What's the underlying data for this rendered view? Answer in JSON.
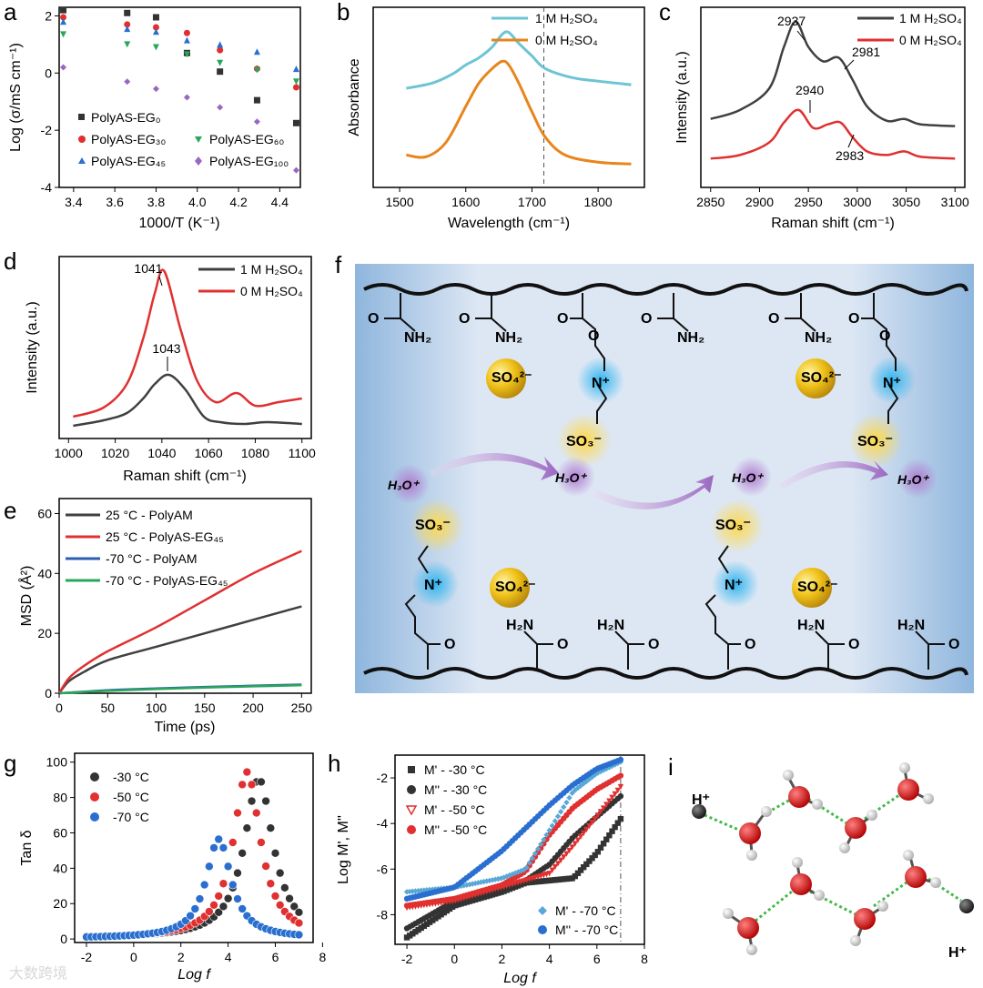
{
  "panels": {
    "a": {
      "label": "a",
      "xlabel": "1000/T (K⁻¹)",
      "ylabel": "Log (σ/mS cm⁻¹)",
      "xticks": [
        "3.4",
        "3.6",
        "3.8",
        "4.0",
        "4.2",
        "4.4"
      ],
      "yticks": [
        "2",
        "0",
        "-2",
        "-4"
      ],
      "legend": [
        "PolyAS-EG₀",
        "PolyAS-EG₃₀",
        "PolyAS-EG₆₀",
        "PolyAS-EG₄₅",
        "PolyAS-EG₁₀₀"
      ]
    },
    "b": {
      "label": "b",
      "xlabel": "Wavelength (cm⁻¹)",
      "ylabel": "Absorbance",
      "xticks": [
        "1500",
        "1600",
        "1700",
        "1800"
      ],
      "legend": [
        "1 M H₂SO₄",
        "0 M H₂SO₄"
      ]
    },
    "c": {
      "label": "c",
      "xlabel": "Raman shift (cm⁻¹)",
      "ylabel": "Intensity (a.u.)",
      "xticks": [
        "2850",
        "2900",
        "2950",
        "3000",
        "3050",
        "3100"
      ],
      "legend": [
        "1 M H₂SO₄",
        "0 M H₂SO₄"
      ],
      "annotations": [
        "2937",
        "2981",
        "2940",
        "2983"
      ]
    },
    "d": {
      "label": "d",
      "xlabel": "Raman shift (cm⁻¹)",
      "ylabel": "Intensity (a.u.)",
      "xticks": [
        "1000",
        "1020",
        "1040",
        "1060",
        "1080",
        "1100"
      ],
      "legend": [
        "1 M H₂SO₄",
        "0 M H₂SO₄"
      ],
      "annotations": [
        "1041",
        "1043"
      ]
    },
    "e": {
      "label": "e",
      "xlabel": "Time (ps)",
      "ylabel": "MSD (Å²)",
      "xticks": [
        "0",
        "50",
        "100",
        "150",
        "200",
        "250"
      ],
      "yticks": [
        "0",
        "20",
        "40",
        "60"
      ],
      "legend": [
        "25 °C - PolyAM",
        "25 °C - PolyAS-EG₄₅",
        "-70 °C - PolyAM",
        "-70 °C - PolyAS-EG₄₅"
      ]
    },
    "f": {
      "label": "f",
      "groups": {
        "amide_top": "NH₂",
        "amide_bottom": "H₂N",
        "sulfate": "SO₄²⁻",
        "hydronium": "H₃O⁺",
        "ammonium": "N⁺",
        "sulfonate": "SO₃⁻"
      }
    },
    "g": {
      "label": "g",
      "xlabel": "Log f",
      "ylabel": "Tan δ",
      "xticks": [
        "-2",
        "0",
        "2",
        "4",
        "6",
        "8"
      ],
      "yticks": [
        "0",
        "20",
        "40",
        "60",
        "80",
        "100"
      ],
      "legend": [
        "-30 °C",
        "-50 °C",
        "-70 °C"
      ]
    },
    "h": {
      "label": "h",
      "xlabel": "Log f",
      "ylabel": "Log M', M''",
      "xticks": [
        "-2",
        "0",
        "2",
        "4",
        "6",
        "8"
      ],
      "yticks": [
        "-2",
        "-4",
        "-6",
        "-8"
      ],
      "legend": [
        "M' - -30 °C",
        "M'' - -30 °C",
        "M' - -50 °C",
        "M'' - -50 °C",
        "M' - -70 °C",
        "M'' - -70 °C"
      ]
    },
    "i": {
      "label": "i",
      "ion_left": "H⁺",
      "ion_right": "H⁺"
    }
  },
  "watermark": "大数跨境",
  "chart_data": [
    {
      "panel": "a",
      "type": "scatter",
      "xlim": [
        3.33,
        4.5
      ],
      "ylim": [
        -4,
        2.3
      ],
      "x": [
        3.35,
        3.66,
        3.8,
        3.95,
        4.11,
        4.29,
        4.48
      ],
      "series": [
        {
          "name": "PolyAS-EG0",
          "color": "#333333",
          "marker": "square",
          "values": [
            2.2,
            2.1,
            1.95,
            0.7,
            0.05,
            -0.95,
            -1.75
          ]
        },
        {
          "name": "PolyAS-EG30",
          "color": "#e03030",
          "marker": "circle",
          "values": [
            1.95,
            1.7,
            1.6,
            1.4,
            0.8,
            0.15,
            -0.5
          ]
        },
        {
          "name": "PolyAS-EG60",
          "color": "#2aa65a",
          "marker": "triangle-down",
          "values": [
            1.35,
            1.0,
            0.9,
            0.65,
            0.35,
            0.1,
            -0.3
          ]
        },
        {
          "name": "PolyAS-EG45",
          "color": "#2a6fd0",
          "marker": "triangle",
          "values": [
            1.8,
            1.55,
            1.45,
            1.15,
            1.0,
            0.75,
            0.15
          ]
        },
        {
          "name": "PolyAS-EG100",
          "color": "#9a66c0",
          "marker": "diamond",
          "values": [
            0.2,
            -0.3,
            -0.55,
            -0.85,
            -1.2,
            -1.7,
            -3.4
          ]
        }
      ]
    },
    {
      "panel": "b",
      "type": "line",
      "xlim": [
        1460,
        1870
      ],
      "ylim": [
        0,
        1
      ],
      "dashed_x": 1718,
      "series": [
        {
          "name": "1 M H2SO4",
          "color": "#6cc4d4",
          "x": [
            1510,
            1550,
            1580,
            1600,
            1620,
            1640,
            1655,
            1665,
            1680,
            1700,
            1720,
            1760,
            1800,
            1850
          ],
          "values": [
            0.55,
            0.58,
            0.63,
            0.68,
            0.72,
            0.78,
            0.85,
            0.86,
            0.8,
            0.73,
            0.66,
            0.61,
            0.59,
            0.57
          ]
        },
        {
          "name": "0 M H2SO4",
          "color": "#e8851c",
          "x": [
            1510,
            1540,
            1570,
            1600,
            1620,
            1640,
            1655,
            1665,
            1680,
            1700,
            1720,
            1750,
            1800,
            1850
          ],
          "values": [
            0.18,
            0.17,
            0.25,
            0.45,
            0.58,
            0.66,
            0.7,
            0.68,
            0.58,
            0.42,
            0.28,
            0.18,
            0.14,
            0.13
          ]
        }
      ]
    },
    {
      "panel": "c",
      "type": "line",
      "xlim": [
        2840,
        3110
      ],
      "ylim": [
        0,
        1
      ],
      "series": [
        {
          "name": "1 M H2SO4",
          "color": "#404040",
          "x": [
            2850,
            2880,
            2910,
            2925,
            2937,
            2950,
            2965,
            2981,
            2995,
            3010,
            3030,
            3048,
            3065,
            3100
          ],
          "values": [
            0.38,
            0.43,
            0.55,
            0.78,
            0.92,
            0.78,
            0.7,
            0.72,
            0.6,
            0.45,
            0.37,
            0.38,
            0.35,
            0.34
          ]
        },
        {
          "name": "0 M H2SO4",
          "color": "#e03030",
          "x": [
            2850,
            2880,
            2910,
            2925,
            2940,
            2955,
            2970,
            2983,
            2995,
            3010,
            3030,
            3048,
            3065,
            3100
          ],
          "values": [
            0.16,
            0.18,
            0.25,
            0.36,
            0.43,
            0.33,
            0.35,
            0.36,
            0.28,
            0.2,
            0.18,
            0.2,
            0.17,
            0.16
          ]
        }
      ]
    },
    {
      "panel": "d",
      "type": "line",
      "xlim": [
        996,
        1104
      ],
      "ylim": [
        0,
        1
      ],
      "series": [
        {
          "name": "1 M H2SO4",
          "color": "#404040",
          "x": [
            1002,
            1015,
            1025,
            1032,
            1037,
            1043,
            1050,
            1058,
            1065,
            1075,
            1085,
            1100
          ],
          "values": [
            0.07,
            0.1,
            0.14,
            0.22,
            0.3,
            0.35,
            0.27,
            0.12,
            0.09,
            0.08,
            0.09,
            0.08
          ]
        },
        {
          "name": "0 M H2SO4",
          "color": "#e03030",
          "x": [
            1002,
            1015,
            1025,
            1032,
            1037,
            1041,
            1048,
            1055,
            1063,
            1072,
            1080,
            1090,
            1100
          ],
          "values": [
            0.12,
            0.17,
            0.3,
            0.55,
            0.8,
            0.92,
            0.6,
            0.32,
            0.2,
            0.25,
            0.18,
            0.2,
            0.22
          ]
        }
      ]
    },
    {
      "panel": "e",
      "type": "line",
      "xlim": [
        0,
        260
      ],
      "ylim": [
        0,
        65
      ],
      "series": [
        {
          "name": "25 °C - PolyAM",
          "color": "#404040",
          "x": [
            0,
            10,
            25,
            50,
            100,
            150,
            200,
            250
          ],
          "values": [
            0,
            4,
            7,
            11,
            15.5,
            20,
            24.5,
            29
          ]
        },
        {
          "name": "25 °C - PolyAS-EG45",
          "color": "#e03030",
          "x": [
            0,
            10,
            25,
            50,
            100,
            150,
            200,
            250
          ],
          "values": [
            0,
            5,
            9,
            14,
            22,
            31,
            40,
            47.5
          ]
        },
        {
          "name": "-70 °C - PolyAM",
          "color": "#2a5fb0",
          "x": [
            0,
            50,
            100,
            150,
            200,
            250
          ],
          "values": [
            0,
            1,
            1.6,
            2.1,
            2.5,
            2.9
          ]
        },
        {
          "name": "-70 °C - PolyAS-EG45",
          "color": "#2aa65a",
          "x": [
            0,
            50,
            100,
            150,
            200,
            250
          ],
          "values": [
            0,
            0.8,
            1.4,
            1.9,
            2.3,
            2.7
          ]
        }
      ]
    },
    {
      "panel": "g",
      "type": "scatter",
      "xlim": [
        -2.5,
        7.6
      ],
      "ylim": [
        -2,
        105
      ],
      "series": [
        {
          "name": "-30 °C",
          "color": "#333333",
          "peak_x": 5.3,
          "peak": 90,
          "width": 0.75
        },
        {
          "name": "-50 °C",
          "color": "#e03030",
          "peak_x": 4.8,
          "peak": 94,
          "width": 0.7
        },
        {
          "name": "-70 °C",
          "color": "#2a6fd0",
          "peak_x": 3.6,
          "peak": 56,
          "width": 0.65
        }
      ]
    },
    {
      "panel": "h",
      "type": "scatter",
      "xlim": [
        -2.5,
        8
      ],
      "ylim": [
        -9.3,
        -1
      ],
      "dashed_x": 7,
      "series": [
        {
          "name": "M' - -30 °C",
          "color": "#333333",
          "x": [
            -2,
            0,
            2,
            3,
            4,
            5,
            6,
            7
          ],
          "values": [
            -9,
            -7.6,
            -7,
            -6.6,
            -6.5,
            -6.4,
            -5.3,
            -3.8
          ]
        },
        {
          "name": "M'' - -30 °C",
          "color": "#333333",
          "x": [
            -2,
            0,
            2,
            3,
            4,
            5,
            6,
            7
          ],
          "values": [
            -8.6,
            -7.4,
            -6.9,
            -6.5,
            -5.8,
            -4.6,
            -3.7,
            -2.8
          ]
        },
        {
          "name": "M' - -50 °C",
          "color": "#e03030",
          "x": [
            -2,
            0,
            2,
            3,
            4,
            5,
            6,
            7
          ],
          "values": [
            -7.7,
            -7.4,
            -6.8,
            -6.5,
            -6.2,
            -5,
            -3.7,
            -2.4
          ]
        },
        {
          "name": "M'' - -50 °C",
          "color": "#e03030",
          "x": [
            -2,
            0,
            2,
            3,
            4,
            5,
            6,
            7
          ],
          "values": [
            -7.6,
            -7.3,
            -6.7,
            -6.1,
            -4.5,
            -3.3,
            -2.5,
            -1.9
          ]
        },
        {
          "name": "M' - -70 °C",
          "color": "#5aa8d8",
          "x": [
            -2,
            0,
            2,
            3,
            4,
            5,
            6,
            7
          ],
          "values": [
            -7,
            -6.8,
            -6.4,
            -6,
            -4.3,
            -2.6,
            -1.8,
            -1.3
          ]
        },
        {
          "name": "M'' - -70 °C",
          "color": "#2a6fd0",
          "x": [
            -2,
            0,
            2,
            3,
            4,
            5,
            6,
            7
          ],
          "values": [
            -7.3,
            -6.8,
            -5.2,
            -4.2,
            -3.2,
            -2.3,
            -1.6,
            -1.2
          ]
        }
      ]
    }
  ]
}
